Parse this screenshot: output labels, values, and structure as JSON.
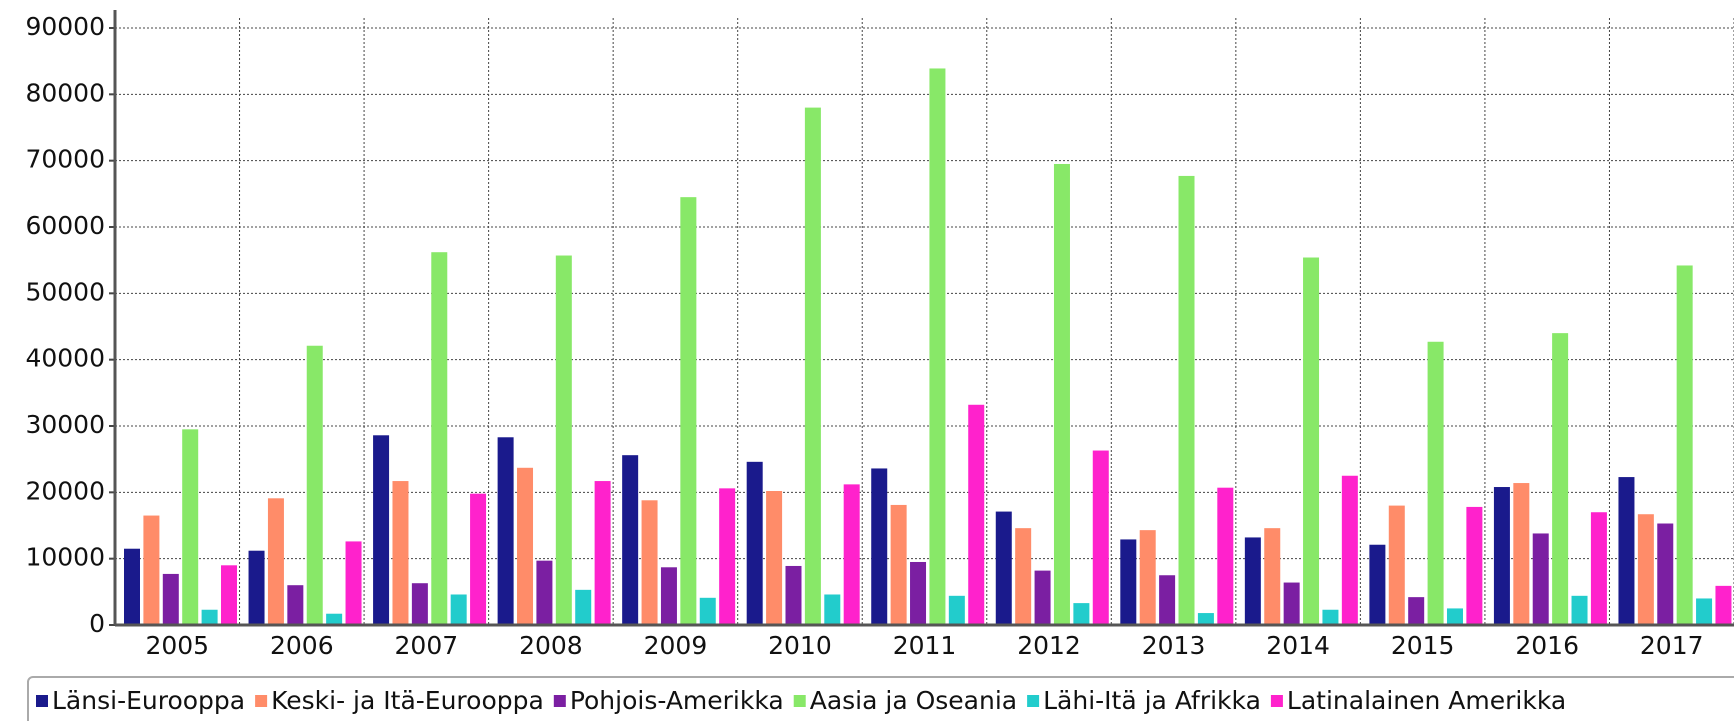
{
  "chart_data": {
    "type": "bar",
    "categories": [
      "2005",
      "2006",
      "2007",
      "2008",
      "2009",
      "2010",
      "2011",
      "2012",
      "2013",
      "2014",
      "2015",
      "2016",
      "2017"
    ],
    "series": [
      {
        "name": "Länsi-Eurooppa",
        "color": "#1a1a8c",
        "values": [
          11500,
          11200,
          28600,
          28300,
          25600,
          24600,
          23600,
          17100,
          12900,
          13200,
          12100,
          20800,
          22300
        ]
      },
      {
        "name": "Keski- ja Itä-Eurooppa",
        "color": "#ff8c69",
        "values": [
          16500,
          19100,
          21700,
          23700,
          18800,
          20200,
          18100,
          14600,
          14300,
          14600,
          18000,
          21400,
          16700
        ]
      },
      {
        "name": "Pohjois-Amerikka",
        "color": "#7b1fa2",
        "values": [
          7700,
          6000,
          6300,
          9700,
          8700,
          8900,
          9500,
          8200,
          7500,
          6400,
          4200,
          13800,
          15300
        ]
      },
      {
        "name": "Aasia ja Oseania",
        "color": "#88e868",
        "values": [
          29500,
          42100,
          56200,
          55700,
          64500,
          78000,
          83900,
          69500,
          67700,
          55400,
          42700,
          44000,
          54200
        ]
      },
      {
        "name": "Lähi-Itä ja Afrikka",
        "color": "#22cccc",
        "values": [
          2300,
          1700,
          4600,
          5300,
          4100,
          4600,
          4400,
          3300,
          1800,
          2300,
          2500,
          4400,
          4000
        ]
      },
      {
        "name": "Latinalainen Amerikka",
        "color": "#ff22cc",
        "values": [
          9000,
          12600,
          19800,
          21700,
          20600,
          21200,
          33200,
          26300,
          20700,
          22500,
          17800,
          17000,
          5900
        ]
      }
    ],
    "ylim": [
      0,
      90000
    ],
    "yticks": [
      0,
      10000,
      20000,
      30000,
      40000,
      50000,
      60000,
      70000,
      80000,
      90000
    ],
    "grid": true,
    "legend": "bottom"
  }
}
